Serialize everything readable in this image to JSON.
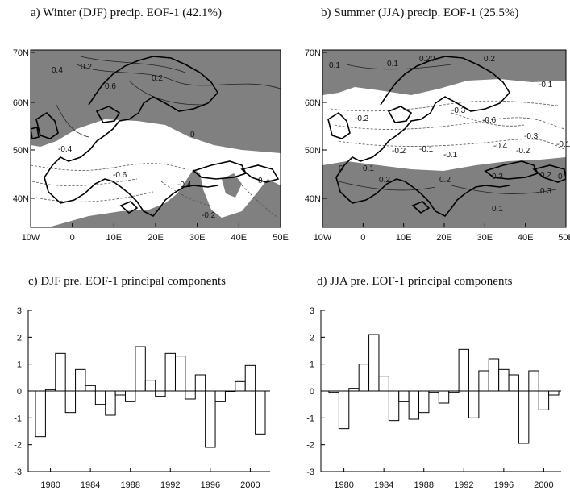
{
  "panels": {
    "a": {
      "title": "a) Winter (DJF) precip. EOF-1 (42.1%)"
    },
    "b": {
      "title": "b) Summer (JJA) precip. EOF-1 (25.5%)"
    },
    "c": {
      "title": "c) DJF pre. EOF-1 principal components"
    },
    "d": {
      "title": "d) JJA pre. EOF-1 principal components"
    }
  },
  "maps": {
    "lon_ticks": [
      "10W",
      "0",
      "10E",
      "20E",
      "30E",
      "40E",
      "50E"
    ],
    "lat_ticks": [
      "70N",
      "60N",
      "50N",
      "40N"
    ],
    "shade_color": "#808080",
    "a_contour_labels": [
      "0.4",
      "0.2",
      "0.2",
      "0.6",
      "0",
      "-0.4",
      "-0.6",
      "-0.4",
      "-0.2",
      "0"
    ],
    "b_contour_labels": [
      "0.1",
      "0.1",
      "0.20",
      "0.2",
      "-0.1",
      "-0.2",
      "-0.3",
      "-0.6",
      "-0.3",
      "-0.4",
      "-0.2",
      "-0.1",
      "-0.2",
      "-0.1",
      "-0.1",
      "0",
      "0.1",
      "0.2",
      "0.2",
      "0.3",
      "0.2",
      "0.3",
      "0.1",
      "0"
    ]
  },
  "chart_data": [
    {
      "type": "bar",
      "title": "c) DJF pre. EOF-1 principal components",
      "x": [
        1979,
        1980,
        1981,
        1982,
        1983,
        1984,
        1985,
        1986,
        1987,
        1988,
        1989,
        1990,
        1991,
        1992,
        1993,
        1994,
        1995,
        1996,
        1997,
        1998,
        1999,
        2000,
        2001
      ],
      "values": [
        -1.7,
        0.05,
        1.4,
        -0.8,
        0.8,
        0.2,
        -0.5,
        -0.9,
        -0.15,
        -0.4,
        1.65,
        0.4,
        -0.2,
        1.4,
        1.3,
        -0.3,
        0.6,
        -2.1,
        -0.4,
        0.0,
        0.35,
        0.95,
        -1.6
      ],
      "xticks": [
        "1980",
        "1984",
        "1988",
        "1992",
        "1996",
        "2000"
      ],
      "yticks": [
        "3",
        "2",
        "1",
        "0",
        "-1",
        "-2",
        "-3"
      ],
      "ylim": [
        -3,
        3
      ]
    },
    {
      "type": "bar",
      "title": "d) JJA pre. EOF-1 principal components",
      "x": [
        1979,
        1980,
        1981,
        1982,
        1983,
        1984,
        1985,
        1986,
        1987,
        1988,
        1989,
        1990,
        1991,
        1992,
        1993,
        1994,
        1995,
        1996,
        1997,
        1998,
        1999,
        2000,
        2001
      ],
      "values": [
        -0.05,
        -1.4,
        0.1,
        1.0,
        2.1,
        0.55,
        -1.1,
        -0.4,
        -1.05,
        -0.8,
        -0.05,
        -0.45,
        -0.05,
        1.55,
        -1.0,
        0.75,
        1.2,
        0.8,
        0.6,
        -1.95,
        0.75,
        -0.7,
        -0.15
      ],
      "xticks": [
        "1980",
        "1984",
        "1988",
        "1992",
        "1996",
        "2000"
      ],
      "yticks": [
        "3",
        "2",
        "1",
        "0",
        "-1",
        "-2",
        "-3"
      ],
      "ylim": [
        -3,
        3
      ]
    }
  ]
}
